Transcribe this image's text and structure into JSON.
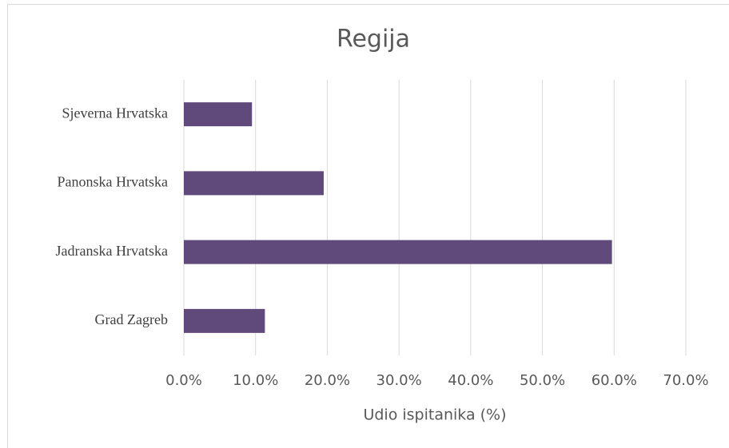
{
  "chart_data": {
    "type": "bar",
    "orientation": "horizontal",
    "title": "Regija",
    "xlabel": "Udio ispitanika (%)",
    "categories": [
      "Sjeverna Hrvatska",
      "Panonska Hrvatska",
      "Jadranska Hrvatska",
      "Grad Zagreb"
    ],
    "values": [
      9.5,
      19.5,
      59.7,
      11.3
    ],
    "color": "#604a7b",
    "xlim": [
      0,
      70
    ],
    "xticks": [
      {
        "value": 0,
        "label": "0.0%"
      },
      {
        "value": 10,
        "label": "10.0%"
      },
      {
        "value": 20,
        "label": "20.0%"
      },
      {
        "value": 30,
        "label": "30.0%"
      },
      {
        "value": 40,
        "label": "40.0%"
      },
      {
        "value": 50,
        "label": "50.0%"
      },
      {
        "value": 60,
        "label": "60.0%"
      },
      {
        "value": 70,
        "label": "70.0%"
      }
    ],
    "grid": true
  }
}
